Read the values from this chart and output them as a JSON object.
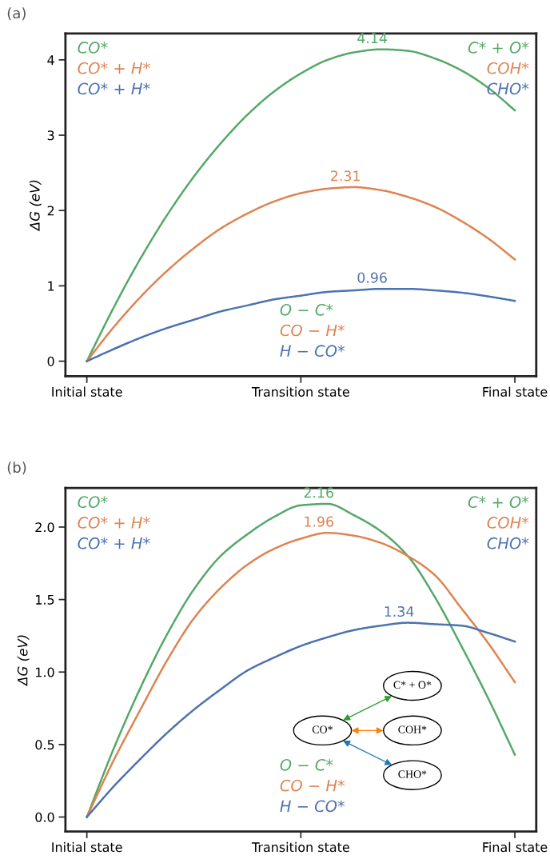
{
  "chart_data": [
    {
      "type": "line",
      "title": "(a)",
      "ylabel": "ΔG (eV)",
      "categories": [
        "Initial state",
        null,
        null,
        null,
        null,
        null,
        null,
        null,
        "Transition state",
        null,
        null,
        null,
        null,
        null,
        null,
        null,
        "Final state"
      ],
      "ylim": [
        -0.2,
        4.35
      ],
      "yticks": [
        0,
        1,
        2,
        3,
        4
      ],
      "grid": false,
      "legend": false,
      "marker": "none",
      "line_style": "solid",
      "series": [
        {
          "color": "#55a868",
          "values": [
            0,
            0.71,
            1.36,
            1.94,
            2.45,
            2.89,
            3.27,
            3.58,
            3.82,
            4.0,
            4.1,
            4.14,
            4.12,
            4.02,
            3.86,
            3.63,
            3.33
          ]
        },
        {
          "color": "#dd8452",
          "values": [
            0,
            0.45,
            0.85,
            1.2,
            1.5,
            1.76,
            1.96,
            2.12,
            2.23,
            2.29,
            2.31,
            2.27,
            2.18,
            2.05,
            1.86,
            1.63,
            1.35
          ]
        },
        {
          "color": "#4c72b0",
          "values": [
            0,
            0.16,
            0.31,
            0.44,
            0.55,
            0.66,
            0.74,
            0.82,
            0.87,
            0.92,
            0.94,
            0.96,
            0.96,
            0.94,
            0.91,
            0.86,
            0.8
          ]
        }
      ],
      "annotations": [
        "CO*",
        "CO* + H*",
        "CO* + H*",
        "C* + O*",
        "COH*",
        "CHO*",
        "O − C*",
        "CO − H*",
        "H − CO*",
        {
          "text": "4.14",
          "y": 4.14
        },
        {
          "text": "2.31",
          "y": 2.31
        },
        {
          "text": "0.96",
          "y": 0.96
        }
      ]
    },
    {
      "type": "line",
      "title": "(b)",
      "ylabel": "ΔG (eV)",
      "categories": [
        "Initial state",
        null,
        null,
        null,
        null,
        null,
        null,
        null,
        "Transition state",
        null,
        null,
        null,
        null,
        null,
        null,
        null,
        "Final state"
      ],
      "ylim": [
        -0.1,
        2.27
      ],
      "yticks": [
        {
          "value": 0,
          "label": "0.0"
        },
        {
          "value": 0.5,
          "label": "0.5"
        },
        {
          "value": 1,
          "label": "1.0"
        },
        {
          "value": 1.5,
          "label": "1.5"
        },
        {
          "value": 2,
          "label": "2.0"
        }
      ],
      "grid": false,
      "legend": false,
      "marker": "none",
      "line_style": "solid",
      "series": [
        {
          "color": "#55a868",
          "values": [
            0,
            0.47,
            0.89,
            1.26,
            1.57,
            1.8,
            1.95,
            2.07,
            2.15,
            2.16,
            2.08,
            1.97,
            1.8,
            1.52,
            1.18,
            0.82,
            0.43
          ]
        },
        {
          "color": "#dd8452",
          "values": [
            0,
            0.39,
            0.74,
            1.08,
            1.37,
            1.58,
            1.74,
            1.85,
            1.92,
            1.96,
            1.94,
            1.89,
            1.8,
            1.67,
            1.44,
            1.2,
            0.93
          ]
        },
        {
          "color": "#4c72b0",
          "values": [
            0,
            0.21,
            0.4,
            0.58,
            0.74,
            0.88,
            1.01,
            1.1,
            1.18,
            1.24,
            1.29,
            1.32,
            1.34,
            1.33,
            1.32,
            1.27,
            1.21
          ]
        }
      ],
      "annotations": [
        "CO*",
        "CO* + H*",
        "CO* + H*",
        "C* + O*",
        "COH*",
        "CHO*",
        "O − C*",
        "CO − H*",
        "H − CO*",
        {
          "text": "2.16",
          "y": 2.16
        },
        {
          "text": "1.96",
          "y": 1.96
        },
        {
          "text": "1.34",
          "y": 1.34
        },
        "C* + O*",
        "CO*",
        "COH*",
        "CHO*"
      ]
    }
  ]
}
